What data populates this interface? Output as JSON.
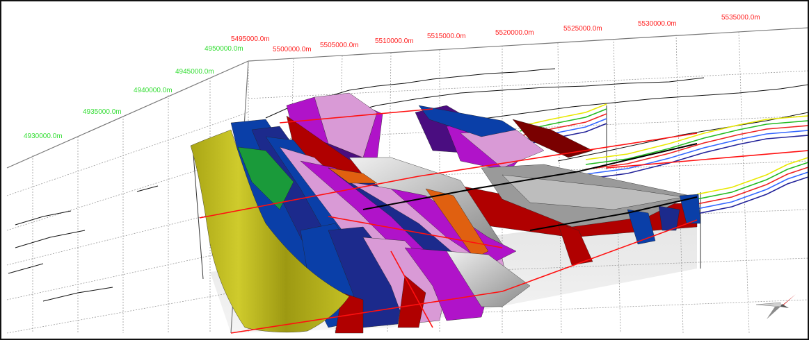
{
  "viewport": {
    "background": "#ffffff",
    "border_color": "#111111"
  },
  "axes": {
    "easting": {
      "color": "#ff2020",
      "labels": [
        "5495000.0m",
        "5500000.0m",
        "5505000.0m",
        "5510000.0m",
        "5515000.0m",
        "5520000.0m",
        "5525000.0m",
        "5530000.0m",
        "5535000.0m"
      ]
    },
    "northing": {
      "color": "#33dd33",
      "labels": [
        "4930000.0m",
        "4935000.0m",
        "4940000.0m",
        "4945000.0m",
        "4950000.0m"
      ]
    }
  },
  "model": {
    "surface_colors": [
      "#b5b21c",
      "#0a3fa8",
      "#1c2a8c",
      "#d99ad6",
      "#b013c9",
      "#4a0d80",
      "#b00000",
      "#c0c0c0",
      "#1a9a3a",
      "#e06010"
    ],
    "horizon_colors": [
      "#e8e800",
      "#22bb22",
      "#ee2222",
      "#3366ff",
      "#222299"
    ]
  },
  "compass": {
    "icon": "north-arrow-icon",
    "colors": [
      "#d0d0d0",
      "#8a8a8a",
      "#cc1111"
    ]
  }
}
